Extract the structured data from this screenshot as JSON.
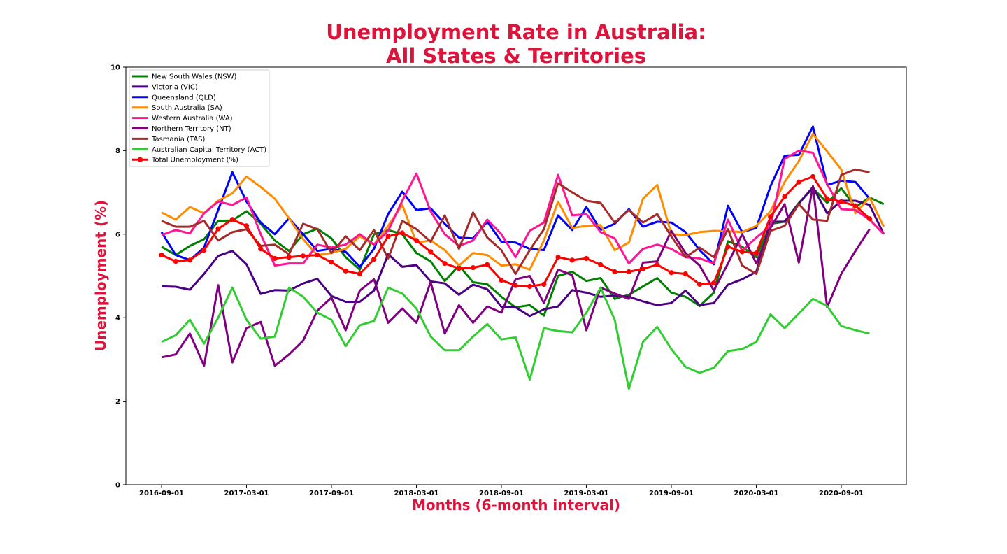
{
  "chart_data": {
    "type": "line",
    "title_line1": "Unemployment Rate in Australia:",
    "title_line2": "All States & Territories",
    "xlabel": "Months (6-month interval)",
    "ylabel": "Unemployment (%)",
    "ylim": [
      0,
      10
    ],
    "yticks": [
      "0",
      "2",
      "4",
      "6",
      "8",
      "10"
    ],
    "xticks": [
      {
        "label": "2016-09-01",
        "index": 0
      },
      {
        "label": "2017-03-01",
        "index": 6
      },
      {
        "label": "2017-09-01",
        "index": 12
      },
      {
        "label": "2018-03-01",
        "index": 18
      },
      {
        "label": "2018-09-01",
        "index": 24
      },
      {
        "label": "2019-03-01",
        "index": 30
      },
      {
        "label": "2019-09-01",
        "index": 36
      },
      {
        "label": "2020-03-01",
        "index": 42
      },
      {
        "label": "2020-09-01",
        "index": 48
      }
    ],
    "grid": false,
    "legend_position": "top-left",
    "series": [
      {
        "name": "New South Wales (NSW)",
        "color": "#008000",
        "values": [
          5.7,
          5.5,
          5.72,
          5.88,
          6.32,
          6.33,
          6.55,
          6.25,
          5.85,
          5.6,
          6.0,
          6.13,
          5.9,
          5.45,
          5.15,
          6.0,
          6.1,
          6.0,
          5.55,
          5.35,
          4.88,
          5.25,
          4.85,
          4.8,
          4.5,
          4.25,
          4.3,
          4.05,
          5.0,
          5.1,
          4.88,
          4.95,
          4.45,
          4.55,
          4.75,
          4.95,
          4.6,
          4.5,
          4.28,
          4.6,
          5.83,
          5.7,
          5.45,
          6.25,
          6.3,
          6.75,
          7.1,
          6.75,
          7.1,
          6.65,
          6.88,
          6.72
        ]
      },
      {
        "name": "Victoria (VIC)",
        "color": "#4B0082",
        "values": [
          4.75,
          4.74,
          4.67,
          5.05,
          5.48,
          5.6,
          5.28,
          4.57,
          4.66,
          4.65,
          4.82,
          4.93,
          4.52,
          4.38,
          4.38,
          4.65,
          5.52,
          5.22,
          5.26,
          4.87,
          4.82,
          4.55,
          4.79,
          4.68,
          4.26,
          4.25,
          4.04,
          4.2,
          4.27,
          4.66,
          4.6,
          4.5,
          4.53,
          4.5,
          4.39,
          4.3,
          4.35,
          4.65,
          4.3,
          4.35,
          4.79,
          4.92,
          5.1,
          6.3,
          6.3,
          6.73,
          7.13,
          6.5,
          6.8,
          6.8,
          6.7,
          6.0
        ]
      },
      {
        "name": "Queensland (QLD)",
        "color": "#0000FF",
        "values": [
          6.05,
          5.5,
          5.38,
          5.68,
          6.58,
          7.48,
          6.78,
          6.28,
          6.0,
          6.38,
          6.0,
          5.6,
          5.65,
          5.58,
          5.22,
          5.65,
          6.48,
          7.02,
          6.58,
          6.62,
          6.25,
          5.92,
          5.9,
          6.3,
          5.82,
          5.8,
          5.65,
          5.62,
          6.45,
          6.1,
          6.65,
          6.1,
          6.25,
          6.6,
          6.18,
          6.3,
          6.28,
          6.05,
          5.62,
          5.28,
          6.68,
          6.05,
          6.15,
          7.15,
          7.88,
          7.9,
          8.58,
          7.18,
          7.28,
          7.25,
          6.85
        ]
      },
      {
        "name": "South Australia (SA)",
        "color": "#FF8C00",
        "values": [
          6.52,
          6.35,
          6.65,
          6.5,
          6.8,
          6.98,
          7.38,
          7.13,
          6.85,
          6.38,
          5.88,
          5.5,
          5.55,
          5.65,
          5.95,
          5.75,
          6.2,
          6.7,
          5.8,
          5.85,
          5.62,
          5.25,
          5.55,
          5.5,
          5.25,
          5.28,
          5.15,
          5.85,
          6.78,
          6.15,
          6.2,
          6.22,
          5.62,
          5.8,
          6.85,
          7.18,
          6.0,
          5.98,
          6.05,
          6.08,
          6.07,
          6.05,
          6.2,
          6.55,
          7.25,
          7.75,
          8.4,
          7.98,
          7.55,
          6.5,
          6.88,
          6.18
        ]
      },
      {
        "name": "Western Australia (WA)",
        "color": "#FF1493",
        "values": [
          5.98,
          6.1,
          6.02,
          6.5,
          6.78,
          6.7,
          6.88,
          6.0,
          5.25,
          5.3,
          5.3,
          5.75,
          5.68,
          5.75,
          6.0,
          5.75,
          6.08,
          6.8,
          7.45,
          6.55,
          6.0,
          5.72,
          5.85,
          6.35,
          6.0,
          5.45,
          6.08,
          6.28,
          7.42,
          6.45,
          6.48,
          6.05,
          5.9,
          5.3,
          5.65,
          5.75,
          5.65,
          5.45,
          5.42,
          5.3,
          6.35,
          5.6,
          5.92,
          6.2,
          7.8,
          8.0,
          7.95,
          7.2,
          6.6,
          6.58,
          6.35,
          6.0
        ]
      },
      {
        "name": "Northern Territory (NT)",
        "color": "#800080",
        "values": [
          3.05,
          3.12,
          3.62,
          2.85,
          4.78,
          2.93,
          3.75,
          3.9,
          2.85,
          3.12,
          3.45,
          4.17,
          4.48,
          3.7,
          4.65,
          4.92,
          3.88,
          4.22,
          3.88,
          4.85,
          3.62,
          4.3,
          3.88,
          4.27,
          4.12,
          4.92,
          5.0,
          4.35,
          5.15,
          5.02,
          3.7,
          4.72,
          4.58,
          4.45,
          5.32,
          5.35,
          6.08,
          5.55,
          5.25,
          4.65,
          5.3,
          6.0,
          5.3,
          6.15,
          6.72,
          5.32,
          7.15,
          4.25,
          5.05,
          5.6,
          6.12
        ]
      },
      {
        "name": "Tasmania (TAS)",
        "color": "#A52A2A",
        "values": [
          6.32,
          6.18,
          6.18,
          6.32,
          5.85,
          6.05,
          6.12,
          5.72,
          5.75,
          5.52,
          6.25,
          6.12,
          5.55,
          5.95,
          5.62,
          6.1,
          5.42,
          6.32,
          6.12,
          5.82,
          6.45,
          5.65,
          6.52,
          5.92,
          5.62,
          5.05,
          5.62,
          6.12,
          7.22,
          7.0,
          6.8,
          6.75,
          6.28,
          6.58,
          6.28,
          6.48,
          5.95,
          5.45,
          5.68,
          5.45,
          6.12,
          5.25,
          5.05,
          6.08,
          6.2,
          6.72,
          6.35,
          6.32,
          7.42,
          7.55,
          7.48
        ]
      },
      {
        "name": "Australian Capital Territory (ACT)",
        "color": "#32CD32",
        "values": [
          3.42,
          3.58,
          3.95,
          3.38,
          4.0,
          4.72,
          3.95,
          3.5,
          3.55,
          4.72,
          4.5,
          4.12,
          3.95,
          3.32,
          3.82,
          3.92,
          4.72,
          4.58,
          4.22,
          3.55,
          3.22,
          3.22,
          3.55,
          3.85,
          3.48,
          3.53,
          2.52,
          3.75,
          3.68,
          3.65,
          4.12,
          4.72,
          3.95,
          2.3,
          3.42,
          3.78,
          3.25,
          2.82,
          2.68,
          2.8,
          3.2,
          3.25,
          3.42,
          4.08,
          3.75,
          4.1,
          4.45,
          4.28,
          3.8,
          3.7,
          3.62
        ]
      },
      {
        "name": "Total Unemployment (%)",
        "color": "#FF0000",
        "values": [
          5.5,
          5.35,
          5.38,
          5.62,
          6.13,
          6.35,
          6.2,
          5.65,
          5.42,
          5.45,
          5.48,
          5.5,
          5.33,
          5.12,
          5.05,
          5.4,
          5.95,
          6.03,
          5.85,
          5.58,
          5.3,
          5.18,
          5.2,
          5.27,
          4.9,
          4.77,
          4.75,
          4.8,
          5.45,
          5.38,
          5.42,
          5.27,
          5.1,
          5.1,
          5.17,
          5.27,
          5.08,
          5.05,
          4.8,
          4.83,
          5.7,
          5.58,
          5.55,
          6.42,
          6.9,
          7.25,
          7.38,
          6.85,
          6.78,
          6.68,
          6.37
        ]
      }
    ]
  }
}
